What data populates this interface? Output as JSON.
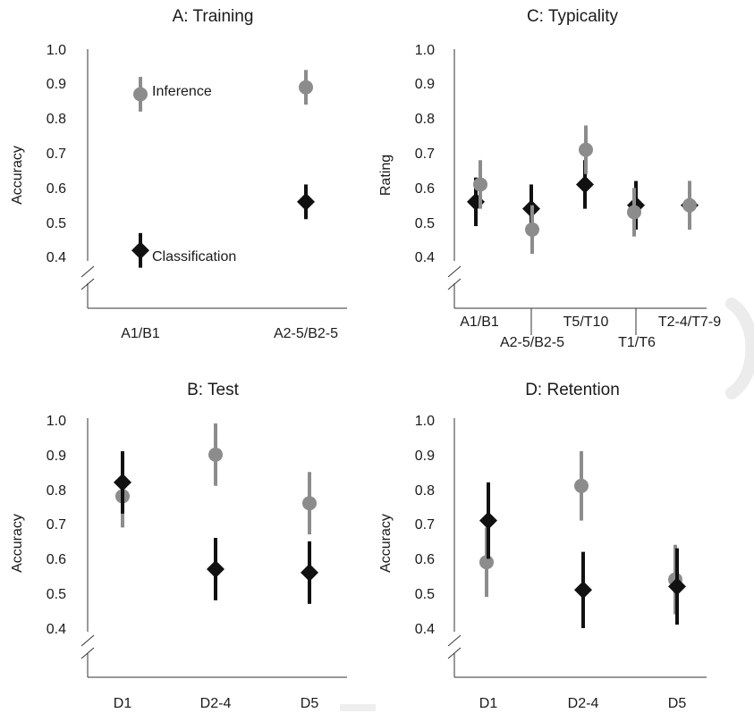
{
  "chart_data": [
    {
      "id": "A",
      "type": "scatter",
      "title": "A: Training",
      "ylabel": "Accuracy",
      "ylim": [
        0.4,
        1.0
      ],
      "axis_break": true,
      "yticks": [
        "1.0",
        "0.9",
        "0.8",
        "0.7",
        "0.6",
        "0.5",
        "0.4"
      ],
      "categories": [
        "A1/B1",
        "A2-5/B2-5"
      ],
      "series": [
        {
          "name": "Inference",
          "marker": "circle",
          "color": "#8c8c8c",
          "values": [
            0.87,
            0.89
          ],
          "ci_low": [
            0.82,
            0.84
          ],
          "ci_high": [
            0.92,
            0.94
          ]
        },
        {
          "name": "Classification",
          "marker": "diamond",
          "color": "#111111",
          "values": [
            0.42,
            0.56
          ],
          "ci_low": [
            0.37,
            0.51
          ],
          "ci_high": [
            0.47,
            0.61
          ]
        }
      ]
    },
    {
      "id": "C",
      "type": "scatter",
      "title": "C: Typicality",
      "ylabel": "Rating",
      "ylim": [
        0.4,
        1.0
      ],
      "axis_break": true,
      "yticks": [
        "1.0",
        "0.9",
        "0.8",
        "0.7",
        "0.6",
        "0.5",
        "0.4"
      ],
      "categories": [
        "A1/B1",
        "A2-5/B2-5",
        "T5/T10",
        "T1/T6",
        "T2-4/T7-9"
      ],
      "series": [
        {
          "name": "",
          "marker": "diamond",
          "color": "#111111",
          "values": [
            0.56,
            0.54,
            0.61,
            0.55,
            0.55
          ],
          "ci_low": [
            0.49,
            0.47,
            0.54,
            0.48,
            0.48
          ],
          "ci_high": [
            0.63,
            0.61,
            0.68,
            0.62,
            0.62
          ]
        },
        {
          "name": "",
          "marker": "circle",
          "color": "#8c8c8c",
          "values": [
            0.61,
            0.48,
            0.71,
            0.53,
            0.55
          ],
          "ci_low": [
            0.54,
            0.41,
            0.64,
            0.46,
            0.48
          ],
          "ci_high": [
            0.68,
            0.55,
            0.78,
            0.6,
            0.62
          ]
        }
      ]
    },
    {
      "id": "B",
      "type": "scatter",
      "title": "B: Test",
      "ylabel": "Accuracy",
      "ylim": [
        0.4,
        1.0
      ],
      "axis_break": true,
      "yticks": [
        "1.0",
        "0.9",
        "0.8",
        "0.7",
        "0.6",
        "0.5",
        "0.4"
      ],
      "categories": [
        "D1",
        "D2-4",
        "D5"
      ],
      "series": [
        {
          "name": "",
          "marker": "circle",
          "color": "#8c8c8c",
          "values": [
            0.78,
            0.9,
            0.76
          ],
          "ci_low": [
            0.69,
            0.81,
            0.67
          ],
          "ci_high": [
            0.87,
            0.99,
            0.85
          ]
        },
        {
          "name": "",
          "marker": "diamond",
          "color": "#111111",
          "values": [
            0.82,
            0.57,
            0.56
          ],
          "ci_low": [
            0.73,
            0.48,
            0.47
          ],
          "ci_high": [
            0.91,
            0.66,
            0.65
          ]
        }
      ]
    },
    {
      "id": "D",
      "type": "scatter",
      "title": "D: Retention",
      "ylabel": "Accuracy",
      "ylim": [
        0.4,
        1.0
      ],
      "axis_break": true,
      "yticks": [
        "1.0",
        "0.9",
        "0.8",
        "0.7",
        "0.6",
        "0.5",
        "0.4"
      ],
      "categories": [
        "D1",
        "D2-4",
        "D5"
      ],
      "series": [
        {
          "name": "",
          "marker": "circle",
          "color": "#8c8c8c",
          "values": [
            0.59,
            0.81,
            0.54
          ],
          "ci_low": [
            0.49,
            0.71,
            0.44
          ],
          "ci_high": [
            0.69,
            0.91,
            0.64
          ]
        },
        {
          "name": "",
          "marker": "diamond",
          "color": "#111111",
          "values": [
            0.71,
            0.51,
            0.52
          ],
          "ci_low": [
            0.6,
            0.4,
            0.41
          ],
          "ci_high": [
            0.82,
            0.62,
            0.63
          ]
        }
      ]
    }
  ]
}
